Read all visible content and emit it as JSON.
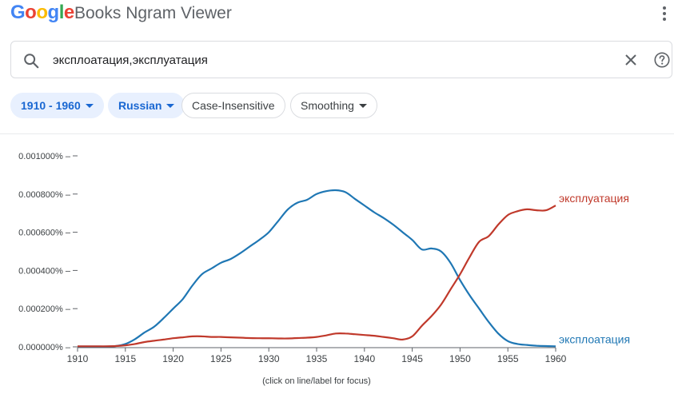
{
  "header": {
    "logo_letters": [
      "G",
      "o",
      "o",
      "g",
      "l",
      "e"
    ],
    "title": "Books Ngram Viewer",
    "menu_icon": "more-vert-icon"
  },
  "search": {
    "value": "эксплоатация,эксплуатация",
    "icons": {
      "search": "search-icon",
      "clear": "close-icon",
      "help": "help-icon"
    }
  },
  "filters": {
    "year_range": "1910 - 1960",
    "corpus": "Russian",
    "case": "Case-Insensitive",
    "smoothing": "Smoothing"
  },
  "colors": {
    "series_1": "#1f77b4",
    "series_2": "#c0392b",
    "chip_bg": "#e8f0fe",
    "chip_text": "#1967d2"
  },
  "chart_data": {
    "type": "line",
    "xlabel": "(click on line/label for focus)",
    "ylabel": "",
    "xlim": [
      1910,
      1960
    ],
    "ylim": [
      0,
      0.00105
    ],
    "yticks": [
      0,
      0.0002,
      0.0004,
      0.0006,
      0.0008,
      0.001
    ],
    "ytick_labels": [
      "0.000000%",
      "0.000200%",
      "0.000400%",
      "0.000600%",
      "0.000800%",
      "0.001000%"
    ],
    "xticks": [
      1910,
      1915,
      1920,
      1925,
      1930,
      1935,
      1940,
      1945,
      1950,
      1955,
      1960
    ],
    "xtick_labels": [
      "1910",
      "1915",
      "1920",
      "1925",
      "1930",
      "1935",
      "1940",
      "1945",
      "1950",
      "1955",
      "1960"
    ],
    "series": [
      {
        "name": "эксплоатация",
        "color": "#1f77b4",
        "x": [
          1910,
          1911,
          1912,
          1913,
          1914,
          1915,
          1916,
          1917,
          1918,
          1919,
          1920,
          1921,
          1922,
          1923,
          1924,
          1925,
          1926,
          1927,
          1928,
          1929,
          1930,
          1931,
          1932,
          1933,
          1934,
          1935,
          1936,
          1937,
          1938,
          1939,
          1940,
          1941,
          1942,
          1943,
          1944,
          1945,
          1946,
          1947,
          1948,
          1949,
          1950,
          1951,
          1952,
          1953,
          1954,
          1955,
          1956,
          1957,
          1958,
          1959,
          1960
        ],
        "values": [
          2e-06,
          2e-06,
          2e-06,
          2e-06,
          4e-06,
          1.5e-05,
          4e-05,
          7.5e-05,
          0.000105,
          0.00015,
          0.0002,
          0.00025,
          0.00032,
          0.00038,
          0.00041,
          0.00044,
          0.00046,
          0.00049,
          0.000525,
          0.00056,
          0.0006,
          0.00066,
          0.00072,
          0.000755,
          0.00077,
          0.0008,
          0.000815,
          0.00082,
          0.00081,
          0.000775,
          0.00074,
          0.000705,
          0.000675,
          0.00064,
          0.0006,
          0.00056,
          0.00051,
          0.000515,
          0.0005,
          0.00044,
          0.00035,
          0.00027,
          0.0002,
          0.00013,
          7e-05,
          3e-05,
          1.5e-05,
          1e-05,
          6e-06,
          4e-06,
          3e-06
        ]
      },
      {
        "name": "эксплуатация",
        "color": "#c0392b",
        "x": [
          1910,
          1911,
          1912,
          1913,
          1914,
          1915,
          1916,
          1917,
          1918,
          1919,
          1920,
          1921,
          1922,
          1923,
          1924,
          1925,
          1926,
          1927,
          1928,
          1929,
          1930,
          1931,
          1932,
          1933,
          1934,
          1935,
          1936,
          1937,
          1938,
          1939,
          1940,
          1941,
          1942,
          1943,
          1944,
          1945,
          1946,
          1947,
          1948,
          1949,
          1950,
          1951,
          1952,
          1953,
          1954,
          1955,
          1956,
          1957,
          1958,
          1959,
          1960
        ],
        "values": [
          3e-06,
          3e-06,
          3e-06,
          3e-06,
          4e-06,
          8e-06,
          1.5e-05,
          2.5e-05,
          3.2e-05,
          3.8e-05,
          4.5e-05,
          5e-05,
          5.5e-05,
          5.5e-05,
          5.2e-05,
          5.2e-05,
          5e-05,
          4.8e-05,
          4.6e-05,
          4.5e-05,
          4.5e-05,
          4.4e-05,
          4.4e-05,
          4.6e-05,
          4.8e-05,
          5.2e-05,
          6e-05,
          7e-05,
          7e-05,
          6.6e-05,
          6.2e-05,
          5.8e-05,
          5.2e-05,
          4.5e-05,
          3.8e-05,
          5.5e-05,
          0.00011,
          0.00016,
          0.00022,
          0.0003,
          0.00038,
          0.00047,
          0.00055,
          0.00058,
          0.00064,
          0.00069,
          0.00071,
          0.00072,
          0.000715,
          0.000715,
          0.00074
        ]
      }
    ]
  }
}
